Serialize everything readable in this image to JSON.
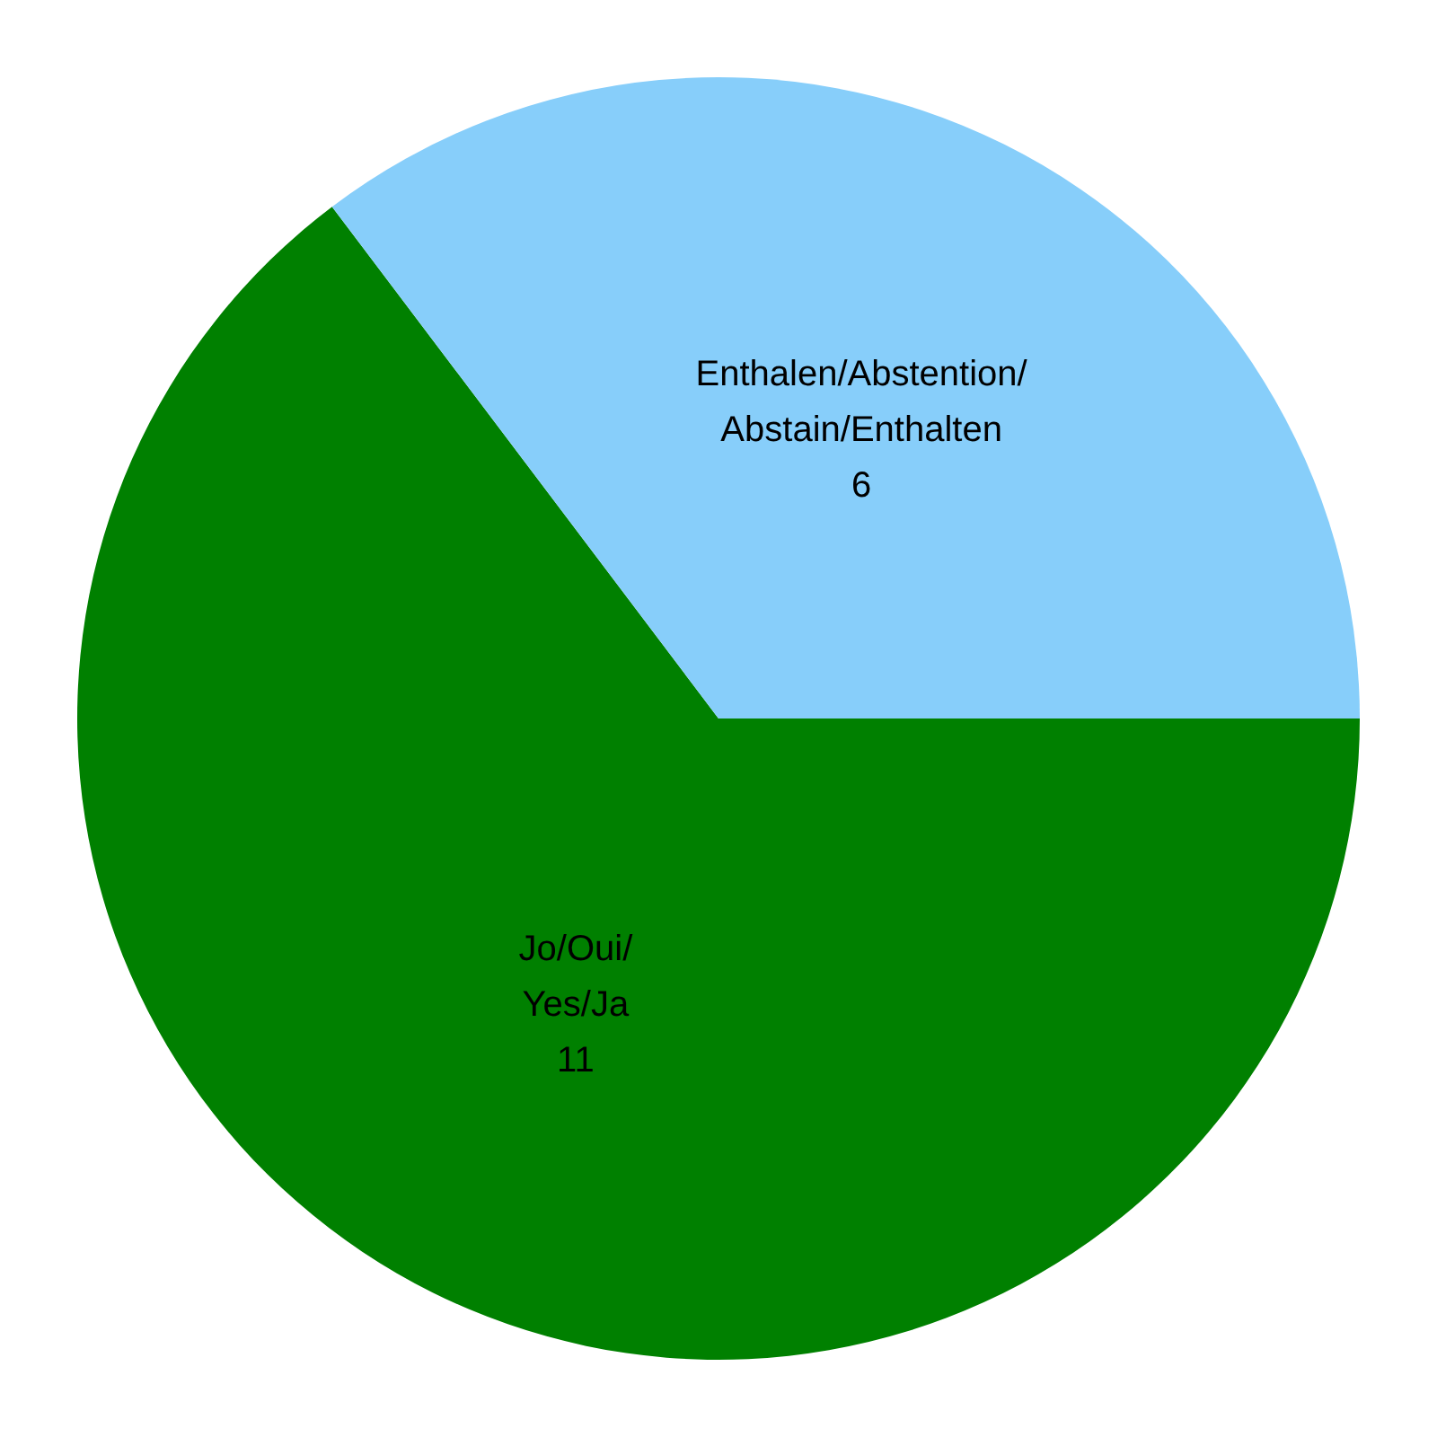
{
  "chart_data": {
    "type": "pie",
    "categories": [
      "Jo/Oui/\nYes/Ja",
      "Enthalen/Abstention/\nAbstain/Enthalten"
    ],
    "values": [
      11,
      6
    ],
    "colors": [
      "#008000",
      "#87cefa"
    ],
    "data_labels": true,
    "legend": false
  }
}
